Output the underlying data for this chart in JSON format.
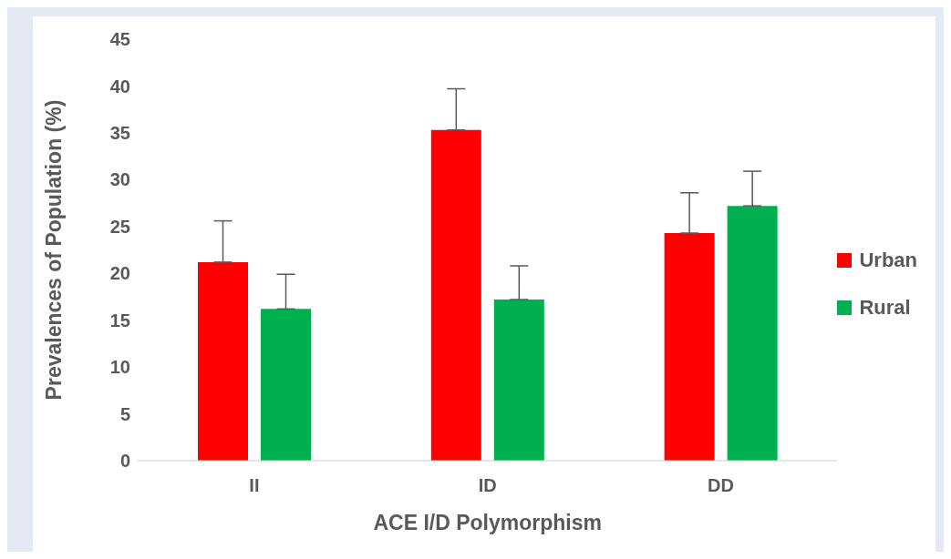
{
  "chart_data": {
    "type": "bar",
    "xlabel": "ACE I/D Polymorphism",
    "ylabel": "Prevalences of Population (%)",
    "categories": [
      "II",
      "ID",
      "DD"
    ],
    "series": [
      {
        "name": "Urban",
        "color": "#ff0000",
        "values": [
          21.2,
          35.3,
          24.3
        ],
        "errors": [
          [
            21.2,
            25.6
          ],
          [
            35.3,
            39.7
          ],
          [
            24.3,
            28.6
          ]
        ]
      },
      {
        "name": "Rural",
        "color": "#00b050",
        "values": [
          16.2,
          17.2,
          27.2
        ],
        "errors": [
          [
            16.2,
            19.9
          ],
          [
            17.2,
            20.8
          ],
          [
            27.2,
            30.9
          ]
        ]
      }
    ],
    "ylim": [
      0,
      45
    ],
    "yticks": [
      0,
      5,
      10,
      15,
      20,
      25,
      30,
      35,
      40,
      45
    ],
    "grid": false,
    "legend": "right"
  }
}
